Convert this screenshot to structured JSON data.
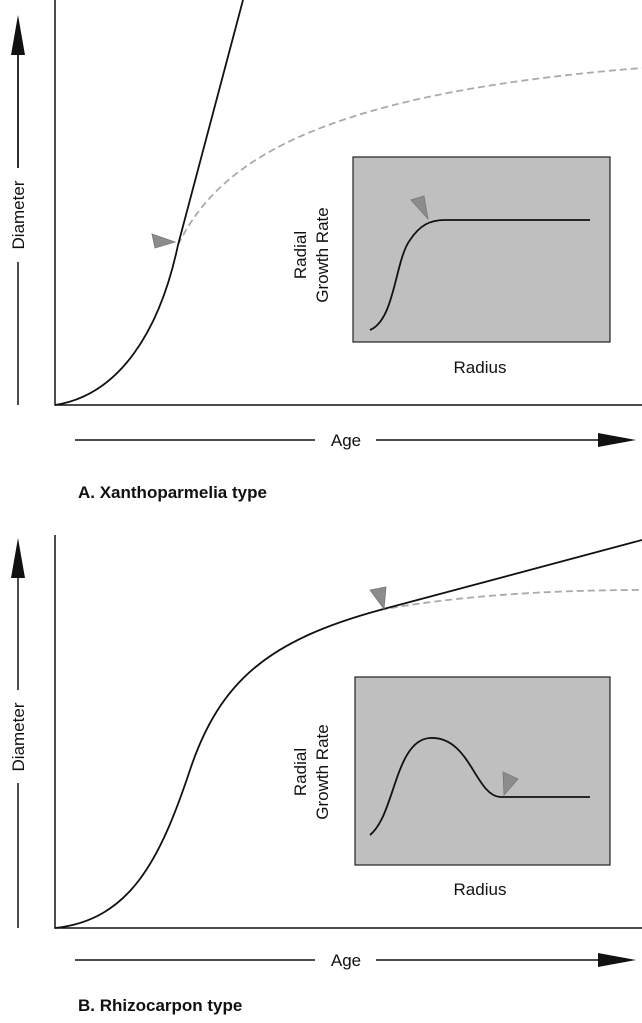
{
  "panels": [
    {
      "y_label": "Diameter",
      "x_label": "Age",
      "caption": "A. Xanthoparmelia type",
      "inset": {
        "y_label_1": "Radial",
        "y_label_2": "Growth Rate",
        "x_label": "Radius"
      }
    },
    {
      "y_label": "Diameter",
      "x_label": "Age",
      "caption": "B. Rhizocarpon type",
      "inset": {
        "y_label_1": "Radial",
        "y_label_2": "Growth Rate",
        "x_label": "Radius"
      }
    }
  ]
}
